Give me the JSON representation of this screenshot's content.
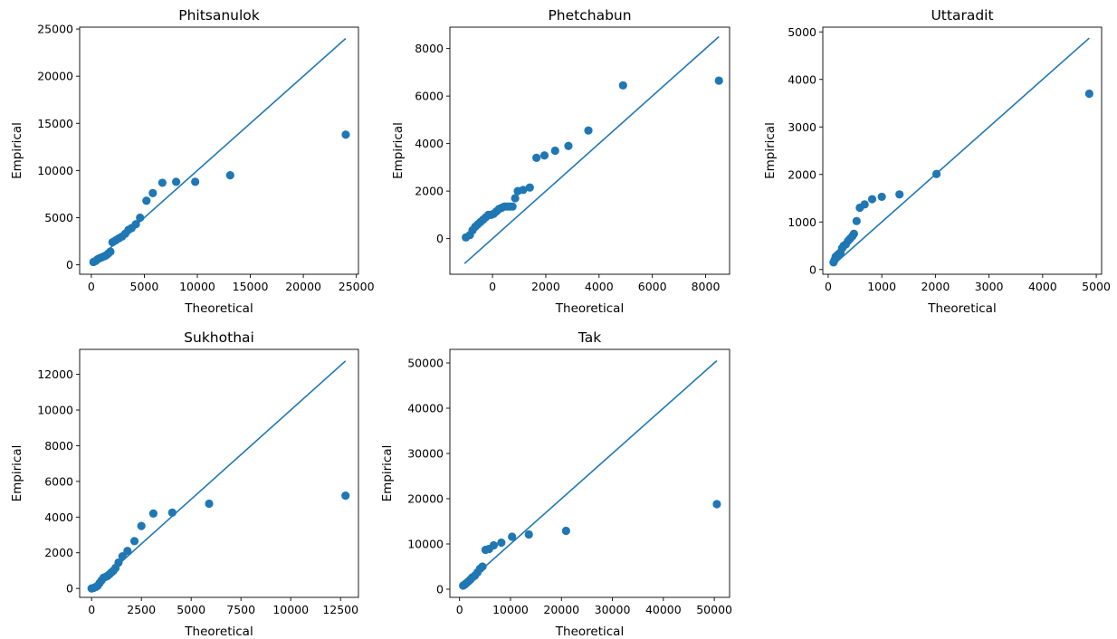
{
  "figure": {
    "accent_color": "#1f77b4"
  },
  "chart_data": [
    {
      "type": "scatter",
      "title": "Phitsanulok",
      "xlabel": "Theoretical",
      "ylabel": "Empirical",
      "xlim": [
        -1100,
        25200
      ],
      "ylim": [
        -1000,
        25200
      ],
      "xticks": [
        0,
        5000,
        10000,
        15000,
        20000,
        25000
      ],
      "yticks": [
        0,
        5000,
        10000,
        15000,
        20000,
        25000
      ],
      "reference_line": [
        [
          200,
          200
        ],
        [
          24000,
          24000
        ]
      ],
      "points": [
        [
          200,
          300
        ],
        [
          400,
          400
        ],
        [
          600,
          600
        ],
        [
          800,
          700
        ],
        [
          1000,
          800
        ],
        [
          1200,
          900
        ],
        [
          1400,
          1000
        ],
        [
          1600,
          1200
        ],
        [
          1800,
          1400
        ],
        [
          2000,
          2400
        ],
        [
          2300,
          2600
        ],
        [
          2600,
          2800
        ],
        [
          2900,
          3000
        ],
        [
          3200,
          3300
        ],
        [
          3500,
          3700
        ],
        [
          3800,
          3900
        ],
        [
          4200,
          4300
        ],
        [
          4600,
          5000
        ],
        [
          5200,
          6800
        ],
        [
          5800,
          7600
        ],
        [
          6700,
          8700
        ],
        [
          8000,
          8800
        ],
        [
          9800,
          8800
        ],
        [
          13100,
          9500
        ],
        [
          24000,
          13800
        ]
      ],
      "series": [
        {
          "name": "",
          "color": "#1f77b4"
        }
      ]
    },
    {
      "type": "scatter",
      "title": "Phetchabun",
      "xlabel": "Theoretical",
      "ylabel": "Empirical",
      "xlim": [
        -1600,
        8900
      ],
      "ylim": [
        -1500,
        8900
      ],
      "xticks": [
        0,
        2000,
        4000,
        6000,
        8000
      ],
      "yticks": [
        0,
        2000,
        4000,
        6000,
        8000
      ],
      "reference_line": [
        [
          -1050,
          -1050
        ],
        [
          8500,
          8500
        ]
      ],
      "points": [
        [
          -1000,
          50
        ],
        [
          -850,
          150
        ],
        [
          -750,
          350
        ],
        [
          -650,
          500
        ],
        [
          -550,
          600
        ],
        [
          -450,
          700
        ],
        [
          -350,
          800
        ],
        [
          -250,
          900
        ],
        [
          -150,
          1000
        ],
        [
          -50,
          1000
        ],
        [
          50,
          1050
        ],
        [
          150,
          1150
        ],
        [
          250,
          1250
        ],
        [
          350,
          1300
        ],
        [
          450,
          1350
        ],
        [
          550,
          1350
        ],
        [
          650,
          1350
        ],
        [
          750,
          1350
        ],
        [
          850,
          1700
        ],
        [
          950,
          2000
        ],
        [
          1150,
          2050
        ],
        [
          1400,
          2150
        ],
        [
          1650,
          3400
        ],
        [
          1950,
          3500
        ],
        [
          2350,
          3700
        ],
        [
          2850,
          3900
        ],
        [
          3600,
          4550
        ],
        [
          4900,
          6450
        ],
        [
          8500,
          6650
        ]
      ],
      "series": [
        {
          "name": "",
          "color": "#1f77b4"
        }
      ]
    },
    {
      "type": "scatter",
      "title": "Uttaradit",
      "xlabel": "Theoretical",
      "ylabel": "Empirical",
      "xlim": [
        -100,
        5100
      ],
      "ylim": [
        -100,
        5100
      ],
      "xticks": [
        0,
        1000,
        2000,
        3000,
        4000,
        5000
      ],
      "yticks": [
        0,
        1000,
        2000,
        3000,
        4000,
        5000
      ],
      "reference_line": [
        [
          100,
          100
        ],
        [
          4870,
          4870
        ]
      ],
      "points": [
        [
          100,
          150
        ],
        [
          120,
          200
        ],
        [
          140,
          270
        ],
        [
          170,
          300
        ],
        [
          200,
          330
        ],
        [
          230,
          360
        ],
        [
          260,
          450
        ],
        [
          290,
          500
        ],
        [
          330,
          530
        ],
        [
          370,
          600
        ],
        [
          410,
          650
        ],
        [
          450,
          700
        ],
        [
          480,
          750
        ],
        [
          530,
          1020
        ],
        [
          590,
          1300
        ],
        [
          680,
          1370
        ],
        [
          820,
          1480
        ],
        [
          1000,
          1530
        ],
        [
          1330,
          1580
        ],
        [
          2020,
          2010
        ],
        [
          4870,
          3700
        ]
      ],
      "series": [
        {
          "name": "",
          "color": "#1f77b4"
        }
      ]
    },
    {
      "type": "scatter",
      "title": "Sukhothai",
      "xlabel": "Theoretical",
      "ylabel": "Empirical",
      "xlim": [
        -600,
        13400
      ],
      "ylim": [
        -500,
        13400
      ],
      "xticks": [
        0,
        2500,
        5000,
        7500,
        10000,
        12500
      ],
      "yticks": [
        0,
        2000,
        4000,
        6000,
        8000,
        10000,
        12000
      ],
      "reference_line": [
        [
          0,
          0
        ],
        [
          12750,
          12750
        ]
      ],
      "points": [
        [
          0,
          0
        ],
        [
          100,
          30
        ],
        [
          200,
          80
        ],
        [
          300,
          150
        ],
        [
          400,
          300
        ],
        [
          500,
          450
        ],
        [
          600,
          600
        ],
        [
          700,
          650
        ],
        [
          800,
          700
        ],
        [
          900,
          800
        ],
        [
          1000,
          900
        ],
        [
          1100,
          1000
        ],
        [
          1200,
          1150
        ],
        [
          1350,
          1450
        ],
        [
          1550,
          1800
        ],
        [
          1800,
          2100
        ],
        [
          2150,
          2650
        ],
        [
          2500,
          3500
        ],
        [
          3100,
          4200
        ],
        [
          4050,
          4250
        ],
        [
          5900,
          4750
        ],
        [
          12750,
          5200
        ]
      ],
      "series": [
        {
          "name": "",
          "color": "#1f77b4"
        }
      ]
    },
    {
      "type": "scatter",
      "title": "Tak",
      "xlabel": "Theoretical",
      "ylabel": "Empirical",
      "xlim": [
        -1900,
        53000
      ],
      "ylim": [
        -1800,
        53000
      ],
      "xticks": [
        0,
        10000,
        20000,
        30000,
        40000,
        50000
      ],
      "yticks": [
        0,
        10000,
        20000,
        30000,
        40000,
        50000
      ],
      "reference_line": [
        [
          700,
          700
        ],
        [
          50500,
          50500
        ]
      ],
      "points": [
        [
          700,
          800
        ],
        [
          1000,
          1000
        ],
        [
          1300,
          1300
        ],
        [
          1700,
          1700
        ],
        [
          2100,
          2100
        ],
        [
          2500,
          2600
        ],
        [
          3000,
          3000
        ],
        [
          3500,
          3700
        ],
        [
          4000,
          4500
        ],
        [
          4500,
          5000
        ],
        [
          5100,
          8700
        ],
        [
          5800,
          8900
        ],
        [
          6700,
          9700
        ],
        [
          8200,
          10300
        ],
        [
          10300,
          11600
        ],
        [
          13600,
          12100
        ],
        [
          20900,
          12900
        ],
        [
          50500,
          18800
        ]
      ],
      "series": [
        {
          "name": "",
          "color": "#1f77b4"
        }
      ]
    }
  ]
}
